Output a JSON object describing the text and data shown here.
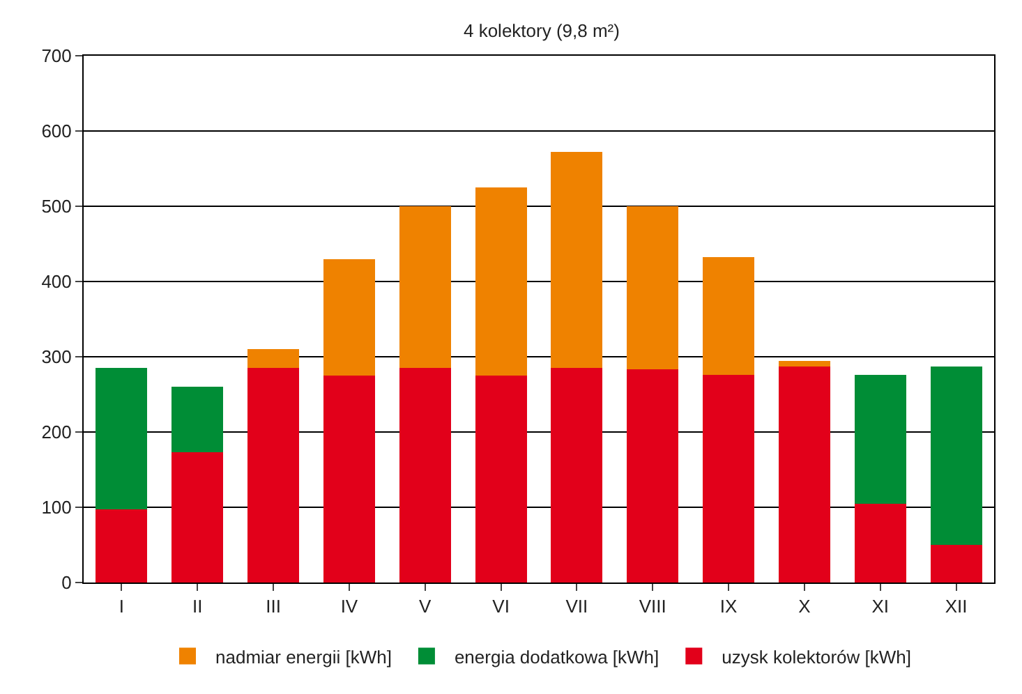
{
  "chart_data": {
    "type": "bar",
    "title": "4 kolektory (9,8 m²)",
    "stacked": true,
    "categories": [
      "I",
      "II",
      "III",
      "IV",
      "V",
      "VI",
      "VII",
      "VIII",
      "IX",
      "X",
      "XI",
      "XII"
    ],
    "series": [
      {
        "name": "uzysk kolektorów [kWh]",
        "color": "#e2001a",
        "values": [
          97,
          173,
          285,
          275,
          285,
          275,
          285,
          283,
          276,
          287,
          105,
          50
        ]
      },
      {
        "name": "energia dodatkowa [kWh]",
        "color": "#008d36",
        "values": [
          188,
          87,
          null,
          null,
          null,
          null,
          null,
          null,
          null,
          null,
          171,
          237
        ]
      },
      {
        "name": "nadmiar energii [kWh]",
        "color": "#ef8200",
        "values": [
          null,
          null,
          25,
          155,
          215,
          250,
          287,
          217,
          156,
          7,
          null,
          null
        ]
      }
    ],
    "ylim": [
      0,
      700
    ],
    "yticks": [
      0,
      100,
      200,
      300,
      400,
      500,
      600,
      700
    ],
    "grid": "y",
    "legend": "bottom"
  }
}
